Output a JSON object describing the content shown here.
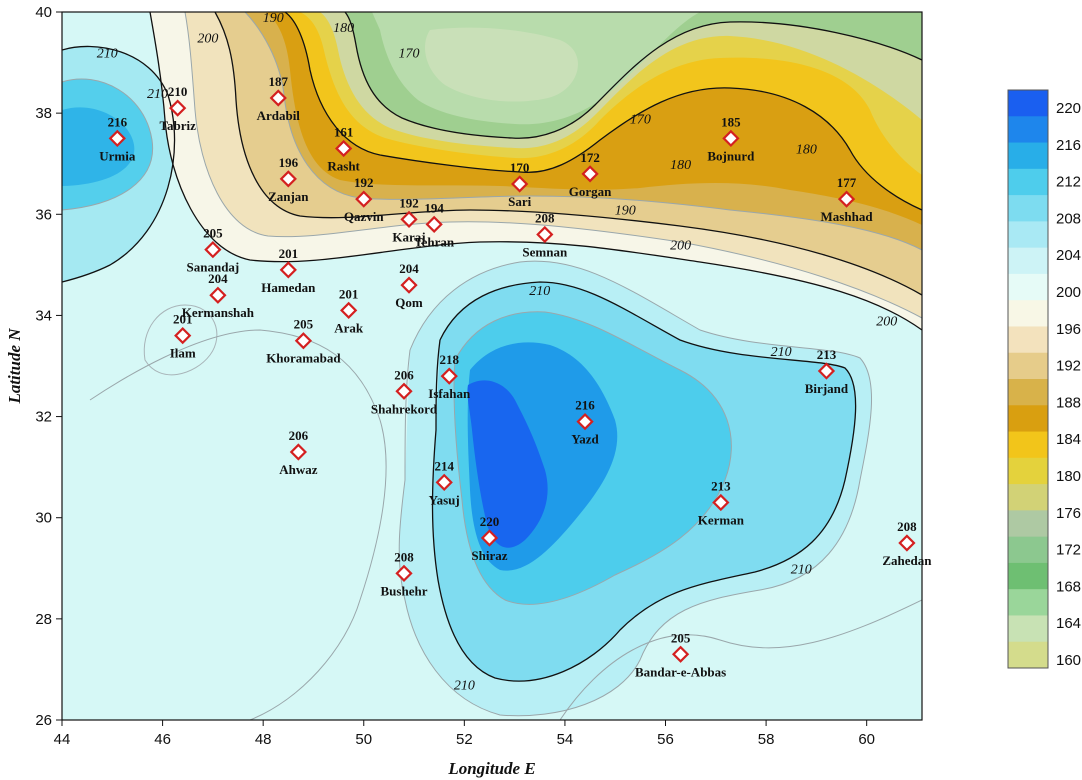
{
  "chart_data": {
    "type": "contour-map",
    "xlabel": "Longitude E",
    "ylabel": "Latitude N",
    "xlim": [
      44,
      61.1
    ],
    "ylim": [
      26,
      40
    ],
    "xticks": [
      44,
      46,
      48,
      50,
      52,
      54,
      56,
      58,
      60
    ],
    "yticks": [
      26,
      28,
      30,
      32,
      34,
      36,
      38,
      40
    ],
    "legend": {
      "placement": "right",
      "labels": [
        220,
        216,
        212,
        208,
        204,
        200,
        196,
        192,
        188,
        184,
        180,
        176,
        172,
        168,
        164,
        160
      ],
      "colors": [
        "#1a5ff0",
        "#1e86ec",
        "#28aee8",
        "#4ecdec",
        "#7ddcf0",
        "#a9e9f4",
        "#cdf3f6",
        "#e6fbf7",
        "#f8f7e6",
        "#f3e2bd",
        "#e6cc8a",
        "#d8b24a",
        "#d99f10",
        "#f2c51a",
        "#e4d23c",
        "#d2d276",
        "#aec9a3",
        "#8cc88f",
        "#6ebf72",
        "#9ad69a",
        "#c8e2b4",
        "#d4dc8c"
      ]
    },
    "contour_labels": [
      {
        "text": "210",
        "lon": 44.9,
        "lat": 39.1
      },
      {
        "text": "210",
        "lon": 45.9,
        "lat": 38.3
      },
      {
        "text": "200",
        "lon": 46.9,
        "lat": 39.4
      },
      {
        "text": "190",
        "lon": 48.2,
        "lat": 39.8
      },
      {
        "text": "180",
        "lon": 49.6,
        "lat": 39.6
      },
      {
        "text": "170",
        "lon": 50.9,
        "lat": 39.1
      },
      {
        "text": "170",
        "lon": 55.5,
        "lat": 37.8
      },
      {
        "text": "180",
        "lon": 56.3,
        "lat": 36.9
      },
      {
        "text": "180",
        "lon": 58.8,
        "lat": 37.2
      },
      {
        "text": "190",
        "lon": 55.2,
        "lat": 36.0
      },
      {
        "text": "200",
        "lon": 56.3,
        "lat": 35.3
      },
      {
        "text": "200",
        "lon": 60.4,
        "lat": 33.8
      },
      {
        "text": "210",
        "lon": 53.5,
        "lat": 34.4
      },
      {
        "text": "210",
        "lon": 58.3,
        "lat": 33.2
      },
      {
        "text": "210",
        "lon": 58.7,
        "lat": 28.9
      },
      {
        "text": "210",
        "lon": 52.0,
        "lat": 26.6
      }
    ],
    "stations": [
      {
        "name": "Urmia",
        "value": 216,
        "lon": 45.1,
        "lat": 37.5
      },
      {
        "name": "Tabriz",
        "value": 210,
        "lon": 46.3,
        "lat": 38.1
      },
      {
        "name": "Ardabil",
        "value": 187,
        "lon": 48.3,
        "lat": 38.3
      },
      {
        "name": "Rasht",
        "value": 161,
        "lon": 49.6,
        "lat": 37.3
      },
      {
        "name": "Zanjan",
        "value": 196,
        "lon": 48.5,
        "lat": 36.7
      },
      {
        "name": "Qazvin",
        "value": 192,
        "lon": 50.0,
        "lat": 36.3
      },
      {
        "name": "Karaj",
        "value": 192,
        "lon": 50.9,
        "lat": 35.9
      },
      {
        "name": "Tehran",
        "value": 194,
        "lon": 51.4,
        "lat": 35.8
      },
      {
        "name": "Sari",
        "value": 170,
        "lon": 53.1,
        "lat": 36.6
      },
      {
        "name": "Gorgan",
        "value": 172,
        "lon": 54.5,
        "lat": 36.8
      },
      {
        "name": "Bojnurd",
        "value": 185,
        "lon": 57.3,
        "lat": 37.5
      },
      {
        "name": "Mashhad",
        "value": 177,
        "lon": 59.6,
        "lat": 36.3
      },
      {
        "name": "Semnan",
        "value": 208,
        "lon": 53.6,
        "lat": 35.6
      },
      {
        "name": "Sanandaj",
        "value": 205,
        "lon": 47.0,
        "lat": 35.3
      },
      {
        "name": "Kermanshah",
        "value": 204,
        "lon": 47.1,
        "lat": 34.4
      },
      {
        "name": "Hamedan",
        "value": 201,
        "lon": 48.5,
        "lat": 34.9
      },
      {
        "name": "Qom",
        "value": 204,
        "lon": 50.9,
        "lat": 34.6
      },
      {
        "name": "Arak",
        "value": 201,
        "lon": 49.7,
        "lat": 34.1
      },
      {
        "name": "Ilam",
        "value": 201,
        "lon": 46.4,
        "lat": 33.6
      },
      {
        "name": "Khoramabad",
        "value": 205,
        "lon": 48.8,
        "lat": 33.5
      },
      {
        "name": "Shahrekord",
        "value": 206,
        "lon": 50.8,
        "lat": 32.5
      },
      {
        "name": "Isfahan",
        "value": 218,
        "lon": 51.7,
        "lat": 32.8
      },
      {
        "name": "Birjand",
        "value": 213,
        "lon": 59.2,
        "lat": 32.9
      },
      {
        "name": "Yazd",
        "value": 216,
        "lon": 54.4,
        "lat": 31.9
      },
      {
        "name": "Ahwaz",
        "value": 206,
        "lon": 48.7,
        "lat": 31.3
      },
      {
        "name": "Yasuj",
        "value": 214,
        "lon": 51.6,
        "lat": 30.7
      },
      {
        "name": "Kerman",
        "value": 213,
        "lon": 57.1,
        "lat": 30.3
      },
      {
        "name": "Shiraz",
        "value": 220,
        "lon": 52.5,
        "lat": 29.6
      },
      {
        "name": "Zahedan",
        "value": 208,
        "lon": 60.8,
        "lat": 29.5
      },
      {
        "name": "Bushehr",
        "value": 208,
        "lon": 50.8,
        "lat": 28.9
      },
      {
        "name": "Bandar-e-Abbas",
        "value": 205,
        "lon": 56.3,
        "lat": 27.3
      }
    ]
  }
}
